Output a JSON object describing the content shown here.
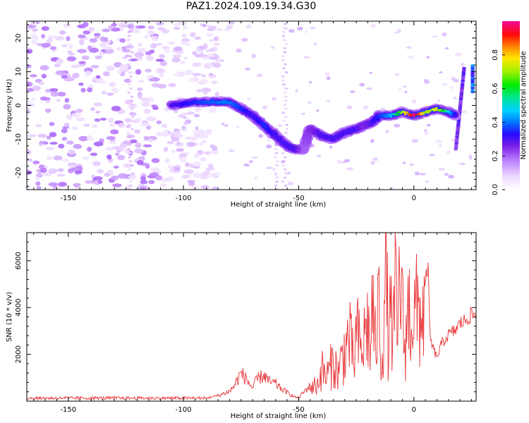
{
  "figure": {
    "title": "PAZ1.2024.109.19.34.G30"
  },
  "chart_data": [
    {
      "type": "heatmap",
      "title": "PAZ1.2024.109.19.34.G30",
      "xlabel": "Height of straight line (km)",
      "ylabel": "Frequency (Hz)",
      "xlim": [
        -168,
        27
      ],
      "ylim": [
        -25,
        25
      ],
      "x_ticks": [
        "-150",
        "-100",
        "-50",
        "0"
      ],
      "x_tick_values": [
        -150,
        -100,
        -50,
        0
      ],
      "y_ticks": [
        "20",
        "10",
        "0",
        "-10",
        "-20"
      ],
      "y_tick_values": [
        20,
        10,
        0,
        -10,
        -20
      ],
      "colormap": "gist_ncar_r",
      "colorbar": {
        "label": "Normalized spectral amplitude",
        "range": [
          0,
          1
        ],
        "ticks": [
          "0.0",
          "0.2",
          "0.4",
          "0.6",
          "0.8"
        ],
        "tick_values": [
          0.0,
          0.2,
          0.4,
          0.6,
          0.8
        ]
      },
      "ridge": {
        "x": [
          -105,
          -95,
          -85,
          -80,
          -75,
          -70,
          -65,
          -60,
          -55,
          -52,
          -48,
          -45,
          -40,
          -35,
          -30,
          -25,
          -22,
          -18,
          -15,
          -10,
          -5,
          0,
          5,
          10,
          15,
          18
        ],
        "y": [
          0,
          1,
          1,
          1,
          -1,
          -3,
          -6,
          -9,
          -12,
          -13,
          -13,
          -7,
          -9,
          -10,
          -8,
          -7,
          -6,
          -5,
          -3,
          -3,
          -2,
          -3,
          -2,
          -1,
          -2,
          -3
        ],
        "peak_amplitude": [
          0.3,
          0.35,
          0.4,
          0.4,
          0.35,
          0.3,
          0.35,
          0.3,
          0.3,
          0.3,
          0.2,
          0.25,
          0.3,
          0.3,
          0.3,
          0.3,
          0.25,
          0.3,
          0.35,
          0.45,
          0.7,
          1.0,
          0.7,
          0.75,
          0.5,
          0.3
        ]
      },
      "noise_region": {
        "x_range": [
          -168,
          -105
        ],
        "y_range": [
          -25,
          25
        ],
        "amplitude": [
          0.05,
          0.2
        ]
      }
    },
    {
      "type": "line",
      "xlabel": "Height of straight line (km)",
      "ylabel": "SNR (10 * v/v)",
      "xlim": [
        -168,
        27
      ],
      "ylim": [
        0,
        7200
      ],
      "x_ticks": [
        "-150",
        "-100",
        "-50",
        "0"
      ],
      "x_tick_values": [
        -150,
        -100,
        -50,
        0
      ],
      "y_ticks": [
        "2000",
        "4000",
        "6000"
      ],
      "y_tick_values": [
        2000,
        4000,
        6000
      ],
      "color": "#e8373a",
      "series": [
        {
          "x": [
            -168,
            -150,
            -130,
            -110,
            -100,
            -90,
            -85,
            -80,
            -78,
            -75,
            -72,
            -70,
            -68,
            -65,
            -63,
            -60,
            -58,
            -55,
            -52,
            -50,
            -48,
            -45,
            -42,
            -40,
            -38,
            -35,
            -33,
            -30,
            -28,
            -26,
            -25,
            -23,
            -22,
            -20,
            -19,
            -18,
            -17,
            -15,
            -14,
            -12,
            -11,
            -10,
            -9,
            -8,
            -7,
            -6,
            -5,
            -4,
            -3,
            -2,
            -1,
            0,
            2,
            4,
            5,
            6,
            7,
            8,
            10,
            12,
            15,
            18,
            20,
            22,
            25,
            27
          ],
          "y": [
            120,
            100,
            100,
            110,
            130,
            150,
            250,
            450,
            700,
            1300,
            900,
            600,
            1000,
            1200,
            900,
            800,
            600,
            400,
            200,
            150,
            400,
            700,
            800,
            1600,
            1200,
            2000,
            1400,
            2600,
            3200,
            1800,
            3500,
            2400,
            2800,
            4100,
            2200,
            5300,
            2600,
            4900,
            1800,
            6600,
            2600,
            4400,
            3100,
            5500,
            2800,
            7200,
            4300,
            2500,
            4100,
            4600,
            4400,
            4300,
            4500,
            4400,
            4900,
            6200,
            2800,
            2400,
            1900,
            2500,
            2900,
            3100,
            3400,
            3500,
            3800,
            3700
          ]
        }
      ]
    }
  ]
}
